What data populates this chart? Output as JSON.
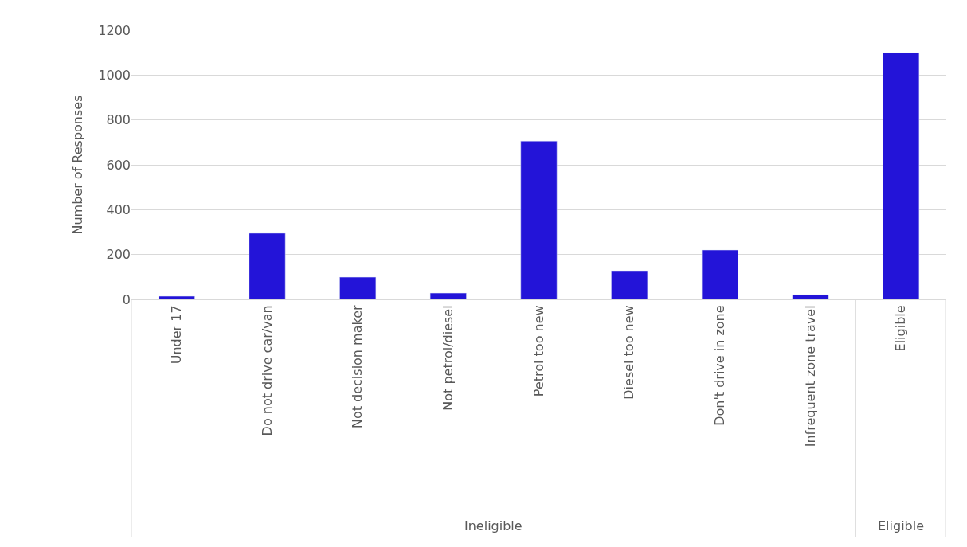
{
  "chart_data": {
    "type": "bar",
    "ylabel": "Number of Responses",
    "categories": [
      "Under 17",
      "Do not drive car/van",
      "Not decision maker",
      "Not petrol/diesel",
      "Petrol too new",
      "Diesel too new",
      "Don't drive in zone",
      "Infrequent zone travel",
      "Eligible"
    ],
    "values": [
      14,
      295,
      99,
      28,
      706,
      128,
      220,
      21,
      1100
    ],
    "color": "#2314d8",
    "ylim": [
      0,
      1200
    ],
    "yticks": [
      0,
      200,
      400,
      600,
      800,
      1000,
      1200
    ],
    "grid": "y",
    "annotations": [
      "Ineligible",
      "Eligible"
    ]
  }
}
